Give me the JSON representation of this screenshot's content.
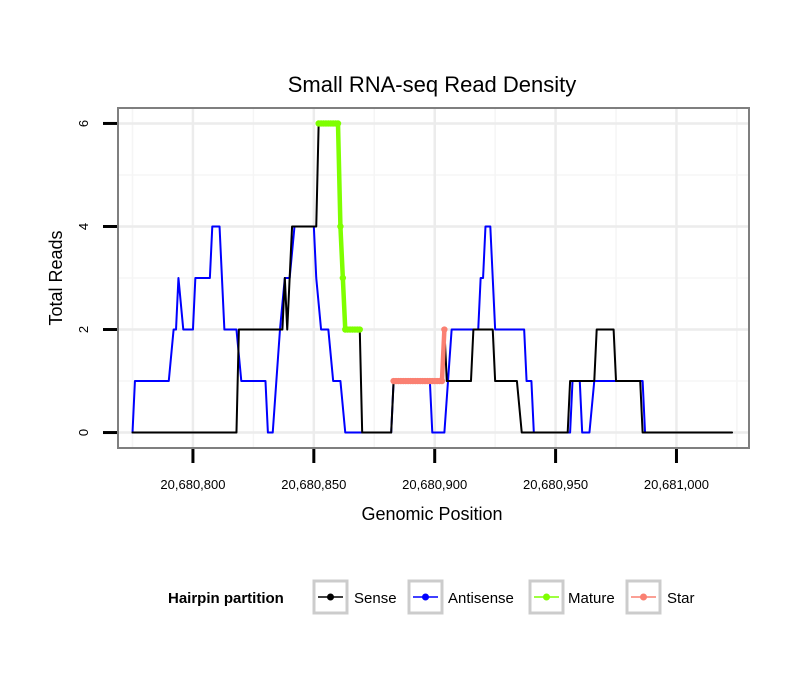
{
  "chart_data": {
    "type": "line",
    "title": "Small RNA-seq Read Density",
    "xlabel": "Genomic Position",
    "ylabel": "Total Reads",
    "xlim": [
      20680769,
      20681030
    ],
    "ylim": [
      -0.3,
      6.3
    ],
    "x_ticks": [
      20680800,
      20680850,
      20680900,
      20680950,
      20681000
    ],
    "x_tick_labels": [
      "20,680,800",
      "20,680,850",
      "20,680,900",
      "20,680,950",
      "20,681,000"
    ],
    "y_ticks": [
      0,
      2,
      4,
      6
    ],
    "y_tick_labels": [
      "0",
      "2",
      "4",
      "6"
    ],
    "grid": true,
    "legend": {
      "title": "Hairpin partition",
      "position": "bottom",
      "entries": [
        {
          "name": "Sense",
          "color": "#000000"
        },
        {
          "name": "Antisense",
          "color": "#0000ff"
        },
        {
          "name": "Mature",
          "color": "#7fff00"
        },
        {
          "name": "Star",
          "color": "#fa8072"
        }
      ]
    },
    "series": [
      {
        "name": "Sense",
        "color": "#000000",
        "points": [
          [
            20680775,
            0
          ],
          [
            20680818,
            0
          ],
          [
            20680819,
            2
          ],
          [
            20680837,
            2
          ],
          [
            20680838,
            3
          ],
          [
            20680839,
            2
          ],
          [
            20680840,
            3
          ],
          [
            20680841,
            4
          ],
          [
            20680851,
            4
          ],
          [
            20680852,
            6
          ],
          [
            20680860,
            6
          ],
          [
            20680861,
            4
          ],
          [
            20680862,
            3
          ],
          [
            20680863,
            2
          ],
          [
            20680869,
            2
          ],
          [
            20680870,
            0
          ],
          [
            20680877,
            0
          ],
          [
            20680878,
            0
          ],
          [
            20680882,
            0
          ],
          [
            20680883,
            1
          ],
          [
            20680903,
            1
          ],
          [
            20680904,
            2
          ],
          [
            20680905,
            1
          ],
          [
            20680915,
            1
          ],
          [
            20680916,
            2
          ],
          [
            20680924,
            2
          ],
          [
            20680925,
            1
          ],
          [
            20680934,
            1
          ],
          [
            20680936,
            0
          ],
          [
            20680955,
            0
          ],
          [
            20680956,
            1
          ],
          [
            20680966,
            1
          ],
          [
            20680967,
            2
          ],
          [
            20680974,
            2
          ],
          [
            20680975,
            1
          ],
          [
            20680985,
            1
          ],
          [
            20680986,
            0
          ],
          [
            20681023,
            0
          ]
        ]
      },
      {
        "name": "Antisense",
        "color": "#0000ff",
        "points": [
          [
            20680775,
            0
          ],
          [
            20680776,
            1
          ],
          [
            20680790,
            1
          ],
          [
            20680792,
            2
          ],
          [
            20680793,
            2
          ],
          [
            20680794,
            3
          ],
          [
            20680796,
            2
          ],
          [
            20680800,
            2
          ],
          [
            20680801,
            3
          ],
          [
            20680807,
            3
          ],
          [
            20680808,
            4
          ],
          [
            20680811,
            4
          ],
          [
            20680813,
            2
          ],
          [
            20680818,
            2
          ],
          [
            20680820,
            1
          ],
          [
            20680830,
            1
          ],
          [
            20680831,
            0
          ],
          [
            20680833,
            0
          ],
          [
            20680836,
            2
          ],
          [
            20680838,
            3
          ],
          [
            20680840,
            3
          ],
          [
            20680842,
            4
          ],
          [
            20680850,
            4
          ],
          [
            20680851,
            3
          ],
          [
            20680853,
            2
          ],
          [
            20680856,
            2
          ],
          [
            20680858,
            1
          ],
          [
            20680861,
            1
          ],
          [
            20680863,
            0
          ],
          [
            20680880,
            0
          ],
          [
            20680882,
            0
          ],
          [
            20680883,
            1
          ],
          [
            20680884,
            1
          ],
          [
            20680898,
            1
          ],
          [
            20680899,
            0
          ],
          [
            20680904,
            0
          ],
          [
            20680907,
            2
          ],
          [
            20680918,
            2
          ],
          [
            20680919,
            3
          ],
          [
            20680920,
            3
          ],
          [
            20680921,
            4
          ],
          [
            20680923,
            4
          ],
          [
            20680925,
            2
          ],
          [
            20680937,
            2
          ],
          [
            20680938,
            1
          ],
          [
            20680940,
            1
          ],
          [
            20680941,
            0
          ],
          [
            20680956,
            0
          ],
          [
            20680957,
            1
          ],
          [
            20680960,
            1
          ],
          [
            20680961,
            0
          ],
          [
            20680964,
            0
          ],
          [
            20680966,
            1
          ],
          [
            20680986,
            1
          ],
          [
            20680987,
            0
          ],
          [
            20681000,
            0
          ]
        ]
      },
      {
        "name": "Mature",
        "color": "#7fff00",
        "points": [
          [
            20680852,
            6
          ],
          [
            20680853,
            6
          ],
          [
            20680854,
            6
          ],
          [
            20680855,
            6
          ],
          [
            20680856,
            6
          ],
          [
            20680857,
            6
          ],
          [
            20680858,
            6
          ],
          [
            20680859,
            6
          ],
          [
            20680860,
            6
          ],
          [
            20680861,
            4
          ],
          [
            20680862,
            3
          ],
          [
            20680863,
            2
          ],
          [
            20680864,
            2
          ],
          [
            20680865,
            2
          ],
          [
            20680866,
            2
          ],
          [
            20680867,
            2
          ],
          [
            20680868,
            2
          ],
          [
            20680869,
            2
          ]
        ]
      },
      {
        "name": "Star",
        "color": "#fa8072",
        "points": [
          [
            20680883,
            1
          ],
          [
            20680884,
            1
          ],
          [
            20680885,
            1
          ],
          [
            20680886,
            1
          ],
          [
            20680887,
            1
          ],
          [
            20680888,
            1
          ],
          [
            20680889,
            1
          ],
          [
            20680890,
            1
          ],
          [
            20680891,
            1
          ],
          [
            20680892,
            1
          ],
          [
            20680893,
            1
          ],
          [
            20680894,
            1
          ],
          [
            20680895,
            1
          ],
          [
            20680896,
            1
          ],
          [
            20680897,
            1
          ],
          [
            20680898,
            1
          ],
          [
            20680899,
            1
          ],
          [
            20680900,
            1
          ],
          [
            20680901,
            1
          ],
          [
            20680902,
            1
          ],
          [
            20680903,
            1
          ],
          [
            20680904,
            2
          ]
        ]
      }
    ]
  }
}
